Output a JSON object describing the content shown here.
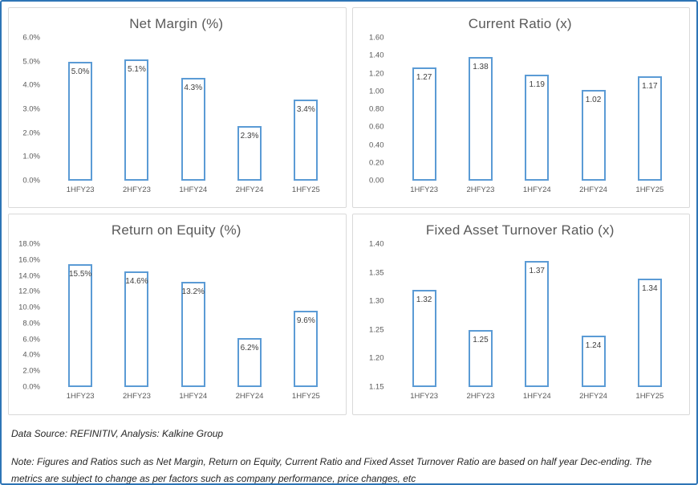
{
  "colors": {
    "frame_border": "#2E75B6",
    "panel_border": "#D9D9D9",
    "bar_border": "#5B9BD5",
    "bar_fill": "#FFFFFF",
    "title_text": "#595959",
    "axis_text": "#595959",
    "data_label_text": "#404040"
  },
  "footer": {
    "source_line": "Data Source: REFINITIV, Analysis: Kalkine Group",
    "note_line": "Note: Figures and Ratios such as Net Margin, Return on Equity, Current Ratio and Fixed Asset Turnover Ratio are based on half year Dec-ending. The metrics are subject to change as per factors such as company performance, price changes, etc"
  },
  "chart_data": [
    {
      "type": "bar",
      "title": "Net Margin (%)",
      "categories": [
        "1HFY23",
        "2HFY23",
        "1HFY24",
        "2HFY24",
        "1HFY25"
      ],
      "values": [
        5.0,
        5.1,
        4.3,
        2.3,
        3.4
      ],
      "labels": [
        "5.0%",
        "5.1%",
        "4.3%",
        "2.3%",
        "3.4%"
      ],
      "ylim": [
        0,
        6
      ],
      "ytick_values": [
        0,
        1,
        2,
        3,
        4,
        5,
        6
      ],
      "yticks": [
        "0.0%",
        "1.0%",
        "2.0%",
        "3.0%",
        "4.0%",
        "5.0%",
        "6.0%"
      ],
      "xlabel": "",
      "ylabel": "",
      "grid": false,
      "legend": null
    },
    {
      "type": "bar",
      "title": "Current Ratio (x)",
      "categories": [
        "1HFY23",
        "2HFY23",
        "1HFY24",
        "2HFY24",
        "1HFY25"
      ],
      "values": [
        1.27,
        1.38,
        1.19,
        1.02,
        1.17
      ],
      "labels": [
        "1.27",
        "1.38",
        "1.19",
        "1.02",
        "1.17"
      ],
      "ylim": [
        0,
        1.6
      ],
      "ytick_values": [
        0,
        0.2,
        0.4,
        0.6,
        0.8,
        1.0,
        1.2,
        1.4,
        1.6
      ],
      "yticks": [
        "0.00",
        "0.20",
        "0.40",
        "0.60",
        "0.80",
        "1.00",
        "1.20",
        "1.40",
        "1.60"
      ],
      "xlabel": "",
      "ylabel": "",
      "grid": false,
      "legend": null
    },
    {
      "type": "bar",
      "title": "Return on Equity (%)",
      "categories": [
        "1HFY23",
        "2HFY23",
        "1HFY24",
        "2HFY24",
        "1HFY25"
      ],
      "values": [
        15.5,
        14.6,
        13.2,
        6.2,
        9.6
      ],
      "labels": [
        "15.5%",
        "14.6%",
        "13.2%",
        "6.2%",
        "9.6%"
      ],
      "ylim": [
        0,
        18
      ],
      "ytick_values": [
        0,
        2,
        4,
        6,
        8,
        10,
        12,
        14,
        16,
        18
      ],
      "yticks": [
        "0.0%",
        "2.0%",
        "4.0%",
        "6.0%",
        "8.0%",
        "10.0%",
        "12.0%",
        "14.0%",
        "16.0%",
        "18.0%"
      ],
      "xlabel": "",
      "ylabel": "",
      "grid": false,
      "legend": null
    },
    {
      "type": "bar",
      "title": "Fixed Asset Turnover Ratio (x)",
      "categories": [
        "1HFY23",
        "2HFY23",
        "1HFY24",
        "2HFY24",
        "1HFY25"
      ],
      "values": [
        1.32,
        1.25,
        1.37,
        1.24,
        1.34
      ],
      "labels": [
        "1.32",
        "1.25",
        "1.37",
        "1.24",
        "1.34"
      ],
      "ylim": [
        1.15,
        1.4
      ],
      "ytick_values": [
        1.15,
        1.2,
        1.25,
        1.3,
        1.35,
        1.4
      ],
      "yticks": [
        "1.15",
        "1.20",
        "1.25",
        "1.30",
        "1.35",
        "1.40"
      ],
      "xlabel": "",
      "ylabel": "",
      "grid": false,
      "legend": null
    }
  ]
}
